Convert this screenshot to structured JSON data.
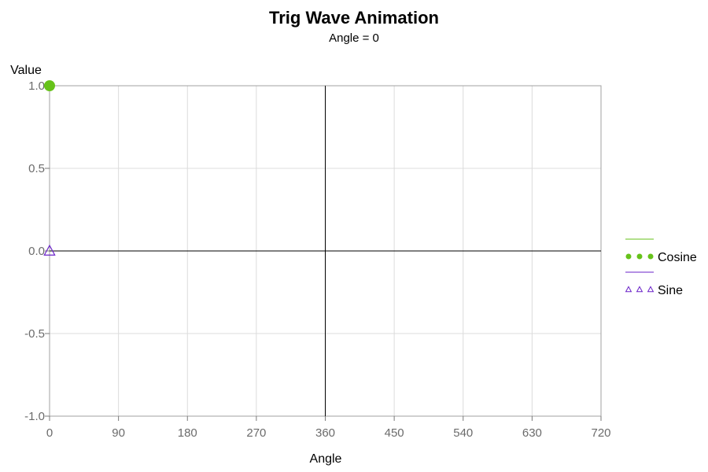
{
  "chart_data": {
    "type": "scatter",
    "title": "Trig Wave Animation",
    "subtitle": "Angle = 0",
    "xlabel": "Angle",
    "ylabel": "Value",
    "xlim": [
      0,
      720
    ],
    "ylim": [
      -1,
      1
    ],
    "x_ticks": [
      0,
      90,
      180,
      270,
      360,
      450,
      540,
      630,
      720
    ],
    "y_ticks": [
      1.0,
      0.5,
      0.0,
      -0.5,
      -1.0
    ],
    "x_tick_labels": [
      "0",
      "90",
      "180",
      "270",
      "360",
      "450",
      "540",
      "630",
      "720"
    ],
    "y_tick_labels": [
      "1.0",
      "0.5",
      "0.0",
      "-0.5",
      "-1.0"
    ],
    "reference_lines": {
      "x": 360,
      "y": 0
    },
    "grid": true,
    "legend_position": "right",
    "series": [
      {
        "name": "Cosine",
        "color": "#66c21a",
        "marker": "filled-circle",
        "x": [
          0
        ],
        "y": [
          1
        ]
      },
      {
        "name": "Sine",
        "color": "#6a22c8",
        "marker": "open-triangle",
        "x": [
          0
        ],
        "y": [
          0
        ]
      }
    ]
  }
}
